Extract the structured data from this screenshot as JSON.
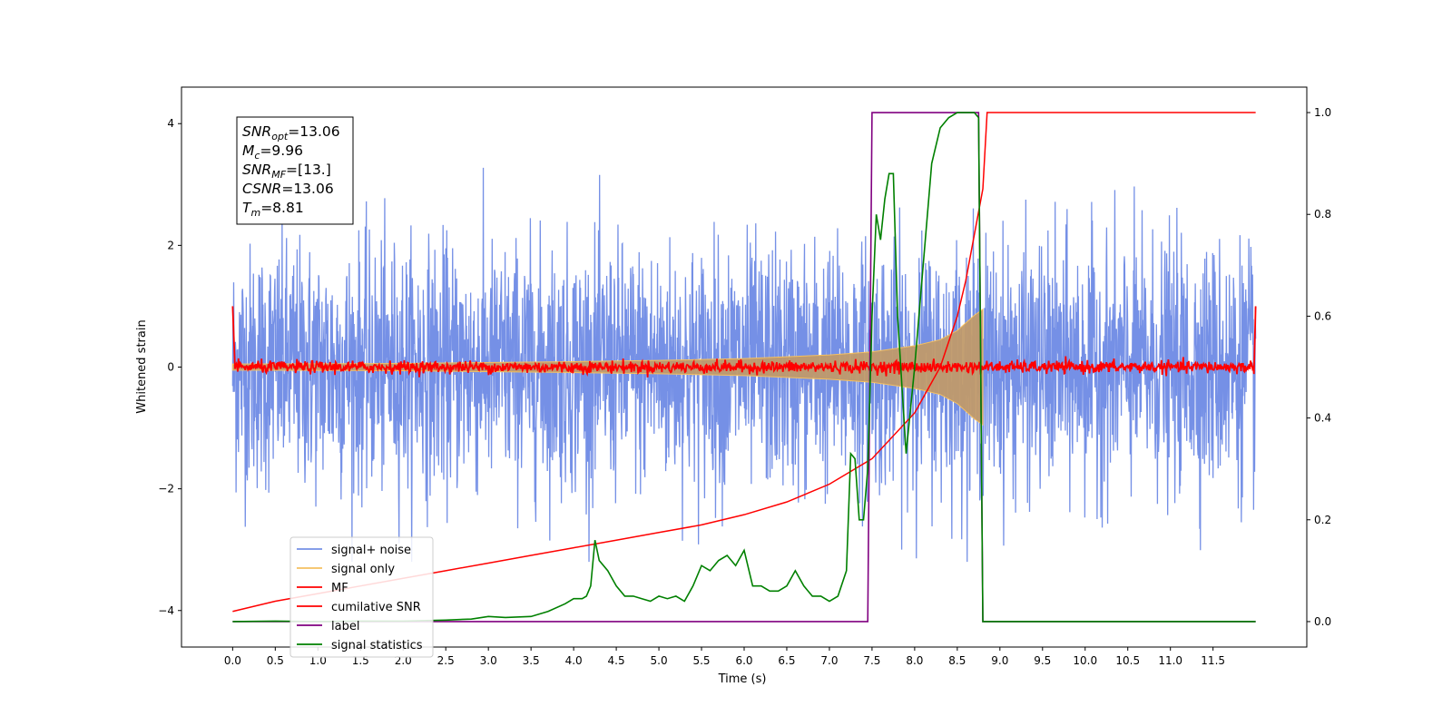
{
  "chart_data": {
    "type": "line",
    "title": "",
    "xlabel": "Time (s)",
    "ylabel": "Whitened strain",
    "y2label": "",
    "xlim": [
      -0.6,
      12.6
    ],
    "ylim": [
      -4.6,
      4.6
    ],
    "y2lim": [
      -0.05,
      1.05
    ],
    "xticks": [
      "0.0",
      "0.5",
      "1.0",
      "1.5",
      "2.0",
      "2.5",
      "3.0",
      "3.5",
      "4.0",
      "4.5",
      "5.0",
      "5.5",
      "6.0",
      "6.5",
      "7.0",
      "7.5",
      "8.0",
      "8.5",
      "9.0",
      "9.5",
      "10.0",
      "10.5",
      "11.0",
      "11.5"
    ],
    "yticks": [
      "−4",
      "−2",
      "0",
      "2",
      "4"
    ],
    "y2ticks": [
      "0.0",
      "0.2",
      "0.4",
      "0.6",
      "0.8",
      "1.0"
    ],
    "annotation": [
      {
        "base": "SNR",
        "sub": "opt",
        "value": "=13.06"
      },
      {
        "base": "M",
        "sub": "c",
        "value": "=9.96"
      },
      {
        "base": "SNR",
        "sub": "MF",
        "value": "=[13.]"
      },
      {
        "base": "CSNR",
        "sub": "",
        "value": "=13.06"
      },
      {
        "base": "T",
        "sub": "m",
        "value": "=8.81"
      }
    ],
    "legend_position": "lower-left",
    "series": [
      {
        "name": "signal+ noise",
        "color": "#7590e6",
        "axis": "left",
        "description": "white noise band, roughly ±1 sigma, spikes to about ±3.4",
        "t_range": [
          0,
          12
        ]
      },
      {
        "name": "signal only",
        "color": "#f5c060",
        "axis": "left",
        "description": "chirp with growing amplitude, merger near 8.8 s",
        "envelope": [
          [
            0,
            0.05
          ],
          [
            2,
            0.06
          ],
          [
            4,
            0.09
          ],
          [
            5,
            0.11
          ],
          [
            6,
            0.14
          ],
          [
            6.5,
            0.17
          ],
          [
            7,
            0.2
          ],
          [
            7.5,
            0.25
          ],
          [
            8,
            0.35
          ],
          [
            8.3,
            0.45
          ],
          [
            8.5,
            0.6
          ],
          [
            8.7,
            0.85
          ],
          [
            8.8,
            0.95
          ]
        ]
      },
      {
        "name": "MF",
        "color": "#ff0000",
        "axis": "left",
        "description": "matched filter output near zero with small fluctuations, edge spikes to 1.0"
      },
      {
        "name": "cumilative SNR",
        "color": "#ff0000",
        "axis": "right",
        "points": [
          [
            0,
            0.02
          ],
          [
            0.5,
            0.04
          ],
          [
            1,
            0.055
          ],
          [
            1.5,
            0.07
          ],
          [
            2,
            0.085
          ],
          [
            2.5,
            0.1
          ],
          [
            3,
            0.115
          ],
          [
            3.5,
            0.13
          ],
          [
            4,
            0.145
          ],
          [
            4.5,
            0.16
          ],
          [
            5,
            0.175
          ],
          [
            5.5,
            0.19
          ],
          [
            6,
            0.21
          ],
          [
            6.5,
            0.235
          ],
          [
            7,
            0.27
          ],
          [
            7.5,
            0.32
          ],
          [
            8,
            0.41
          ],
          [
            8.3,
            0.5
          ],
          [
            8.5,
            0.6
          ],
          [
            8.6,
            0.67
          ],
          [
            8.7,
            0.76
          ],
          [
            8.8,
            0.85
          ],
          [
            8.85,
            1.0
          ],
          [
            12,
            1.0
          ]
        ]
      },
      {
        "name": "label",
        "color": "#800080",
        "axis": "right",
        "points": [
          [
            0,
            0
          ],
          [
            7.45,
            0
          ],
          [
            7.5,
            1
          ],
          [
            8.75,
            1
          ],
          [
            8.8,
            0
          ],
          [
            12,
            0
          ]
        ]
      },
      {
        "name": "signal statistics",
        "color": "#008000",
        "axis": "right",
        "points": [
          [
            0,
            0
          ],
          [
            0.5,
            0.001
          ],
          [
            1,
            0.0
          ],
          [
            1.5,
            0.001
          ],
          [
            2,
            0.001
          ],
          [
            2.5,
            0.003
          ],
          [
            2.8,
            0.005
          ],
          [
            3.0,
            0.01
          ],
          [
            3.2,
            0.008
          ],
          [
            3.5,
            0.01
          ],
          [
            3.7,
            0.02
          ],
          [
            3.9,
            0.035
          ],
          [
            4.0,
            0.045
          ],
          [
            4.1,
            0.045
          ],
          [
            4.15,
            0.05
          ],
          [
            4.2,
            0.07
          ],
          [
            4.25,
            0.16
          ],
          [
            4.3,
            0.12
          ],
          [
            4.4,
            0.1
          ],
          [
            4.5,
            0.07
          ],
          [
            4.6,
            0.05
          ],
          [
            4.7,
            0.05
          ],
          [
            4.8,
            0.045
          ],
          [
            4.9,
            0.04
          ],
          [
            5.0,
            0.05
          ],
          [
            5.1,
            0.045
          ],
          [
            5.2,
            0.05
          ],
          [
            5.3,
            0.04
          ],
          [
            5.4,
            0.07
          ],
          [
            5.5,
            0.11
          ],
          [
            5.6,
            0.1
          ],
          [
            5.7,
            0.12
          ],
          [
            5.8,
            0.13
          ],
          [
            5.9,
            0.11
          ],
          [
            6.0,
            0.14
          ],
          [
            6.1,
            0.07
          ],
          [
            6.2,
            0.07
          ],
          [
            6.3,
            0.06
          ],
          [
            6.4,
            0.06
          ],
          [
            6.5,
            0.07
          ],
          [
            6.6,
            0.1
          ],
          [
            6.7,
            0.07
          ],
          [
            6.8,
            0.05
          ],
          [
            6.9,
            0.05
          ],
          [
            7.0,
            0.04
          ],
          [
            7.1,
            0.05
          ],
          [
            7.2,
            0.1
          ],
          [
            7.25,
            0.33
          ],
          [
            7.3,
            0.32
          ],
          [
            7.35,
            0.2
          ],
          [
            7.4,
            0.2
          ],
          [
            7.45,
            0.3
          ],
          [
            7.5,
            0.6
          ],
          [
            7.55,
            0.8
          ],
          [
            7.6,
            0.75
          ],
          [
            7.65,
            0.83
          ],
          [
            7.7,
            0.88
          ],
          [
            7.75,
            0.88
          ],
          [
            7.8,
            0.6
          ],
          [
            7.9,
            0.33
          ],
          [
            8.0,
            0.5
          ],
          [
            8.1,
            0.7
          ],
          [
            8.2,
            0.9
          ],
          [
            8.3,
            0.97
          ],
          [
            8.4,
            0.99
          ],
          [
            8.5,
            1.0
          ],
          [
            8.6,
            1.0
          ],
          [
            8.7,
            1.0
          ],
          [
            8.75,
            0.99
          ],
          [
            8.8,
            0.0
          ],
          [
            9.0,
            0.0
          ],
          [
            12,
            0.0
          ]
        ]
      }
    ]
  }
}
